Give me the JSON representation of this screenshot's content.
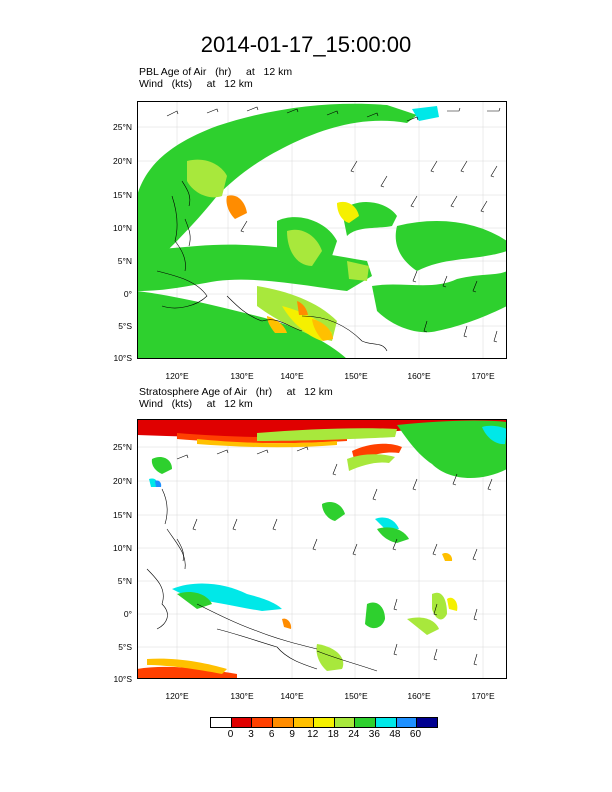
{
  "page": {
    "title": "2014-01-17_15:00:00"
  },
  "panels": [
    {
      "title_line1": "PBL Age of Air   (hr)     at   12 km",
      "title_line2": "Wind   (kts)     at   12 km",
      "lat_ticks": [
        "25°N",
        "20°N",
        "15°N",
        "10°N",
        "5°N",
        "0°",
        "5°S",
        "10°S"
      ],
      "lon_ticks": [
        "120°E",
        "130°E",
        "140°E",
        "150°E",
        "160°E",
        "170°E"
      ]
    },
    {
      "title_line1": "Stratosphere Age of Air   (hr)     at   12 km",
      "title_line2": "Wind   (kts)     at   12 km",
      "lat_ticks": [
        "25°N",
        "20°N",
        "15°N",
        "10°N",
        "5°N",
        "0°",
        "5°S",
        "10°S"
      ],
      "lon_ticks": [
        "120°E",
        "130°E",
        "140°E",
        "150°E",
        "160°E",
        "170°E"
      ]
    }
  ],
  "colorbar": {
    "labels": [
      "0",
      "3",
      "6",
      "9",
      "12",
      "18",
      "24",
      "36",
      "48",
      "60"
    ],
    "colors": [
      "#ffffff",
      "#e00000",
      "#ff4000",
      "#ff8c00",
      "#ffc000",
      "#f5f000",
      "#a8e83c",
      "#2ed02e",
      "#00e8e8",
      "#1e90ff",
      "#000090"
    ]
  },
  "map_colors": {
    "pbl_dominant": "#2ed02e",
    "strat_top_band": "#e00000",
    "coast": "#000000",
    "grid": "#d8d8d8"
  }
}
